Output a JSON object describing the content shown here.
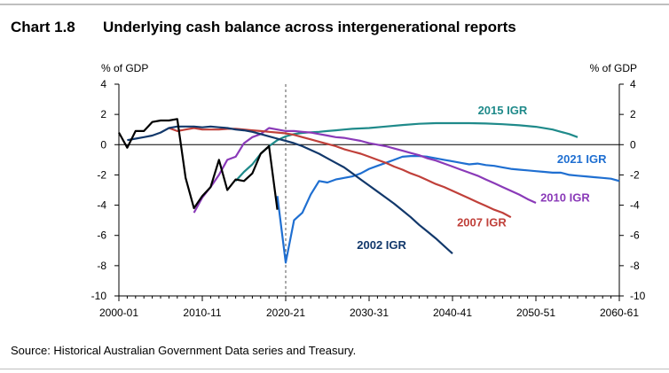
{
  "header": {
    "number": "Chart 1.8",
    "title": "Underlying cash balance across intergenerational reports"
  },
  "source": "Source: Historical Australian Government Data series and Treasury.",
  "chart_data": {
    "type": "line",
    "title": "Underlying cash balance across intergenerational reports",
    "ylabel_left": "% of GDP",
    "ylabel_right": "% of GDP",
    "xlim": [
      2000,
      2060
    ],
    "ylim": [
      -10,
      4
    ],
    "x_ticks": [
      {
        "x": 2000,
        "label": "2000-01"
      },
      {
        "x": 2010,
        "label": "2010-11"
      },
      {
        "x": 2020,
        "label": "2020-21"
      },
      {
        "x": 2030,
        "label": "2030-31"
      },
      {
        "x": 2040,
        "label": "2040-41"
      },
      {
        "x": 2050,
        "label": "2050-51"
      },
      {
        "x": 2060,
        "label": "2060-61"
      }
    ],
    "y_ticks": [
      4,
      2,
      0,
      -2,
      -4,
      -6,
      -8,
      -10
    ],
    "vline_x": 2020,
    "grid": false,
    "series": [
      {
        "name": "2015 IGR",
        "color": "#1f8a8a",
        "points": [
          [
            2014,
            -2.4
          ],
          [
            2015,
            -1.8
          ],
          [
            2016,
            -1.3
          ],
          [
            2017,
            -0.6
          ],
          [
            2018,
            -0.1
          ],
          [
            2019,
            0.3
          ],
          [
            2020,
            0.55
          ],
          [
            2021,
            0.7
          ],
          [
            2022,
            0.78
          ],
          [
            2023,
            0.82
          ],
          [
            2024,
            0.85
          ],
          [
            2025,
            0.9
          ],
          [
            2026,
            0.95
          ],
          [
            2027,
            1.0
          ],
          [
            2028,
            1.05
          ],
          [
            2030,
            1.1
          ],
          [
            2032,
            1.2
          ],
          [
            2034,
            1.3
          ],
          [
            2036,
            1.38
          ],
          [
            2038,
            1.42
          ],
          [
            2040,
            1.42
          ],
          [
            2042,
            1.42
          ],
          [
            2044,
            1.4
          ],
          [
            2046,
            1.35
          ],
          [
            2048,
            1.28
          ],
          [
            2050,
            1.18
          ],
          [
            2052,
            1.0
          ],
          [
            2053,
            0.85
          ],
          [
            2054,
            0.7
          ],
          [
            2055,
            0.5
          ]
        ]
      },
      {
        "name": "2021 IGR",
        "color": "#1f6fd1",
        "points": [
          [
            2019,
            -3.4
          ],
          [
            2020,
            -7.8
          ],
          [
            2021,
            -5.0
          ],
          [
            2022,
            -4.5
          ],
          [
            2023,
            -3.3
          ],
          [
            2024,
            -2.4
          ],
          [
            2025,
            -2.5
          ],
          [
            2026,
            -2.3
          ],
          [
            2027,
            -2.2
          ],
          [
            2028,
            -2.1
          ],
          [
            2029,
            -1.9
          ],
          [
            2030,
            -1.6
          ],
          [
            2031,
            -1.4
          ],
          [
            2032,
            -1.2
          ],
          [
            2033,
            -1.0
          ],
          [
            2034,
            -0.8
          ],
          [
            2035,
            -0.75
          ],
          [
            2036,
            -0.75
          ],
          [
            2037,
            -0.8
          ],
          [
            2038,
            -0.9
          ],
          [
            2039,
            -1.0
          ],
          [
            2040,
            -1.1
          ],
          [
            2041,
            -1.2
          ],
          [
            2042,
            -1.3
          ],
          [
            2043,
            -1.25
          ],
          [
            2044,
            -1.35
          ],
          [
            2045,
            -1.4
          ],
          [
            2046,
            -1.5
          ],
          [
            2047,
            -1.6
          ],
          [
            2048,
            -1.65
          ],
          [
            2049,
            -1.7
          ],
          [
            2050,
            -1.75
          ],
          [
            2051,
            -1.8
          ],
          [
            2052,
            -1.85
          ],
          [
            2053,
            -1.85
          ],
          [
            2054,
            -2.0
          ],
          [
            2055,
            -2.05
          ],
          [
            2056,
            -2.1
          ],
          [
            2057,
            -2.15
          ],
          [
            2058,
            -2.2
          ],
          [
            2059,
            -2.25
          ],
          [
            2060,
            -2.4
          ]
        ]
      },
      {
        "name": "2010 IGR",
        "color": "#8a3ab8",
        "points": [
          [
            2009,
            -4.5
          ],
          [
            2010,
            -3.5
          ],
          [
            2011,
            -2.8
          ],
          [
            2012,
            -2.0
          ],
          [
            2013,
            -1.0
          ],
          [
            2014,
            -0.8
          ],
          [
            2015,
            0.1
          ],
          [
            2016,
            0.5
          ],
          [
            2017,
            0.7
          ],
          [
            2018,
            1.1
          ],
          [
            2019,
            1.0
          ],
          [
            2020,
            0.9
          ],
          [
            2021,
            0.9
          ],
          [
            2022,
            0.85
          ],
          [
            2023,
            0.8
          ],
          [
            2024,
            0.7
          ],
          [
            2025,
            0.6
          ],
          [
            2026,
            0.5
          ],
          [
            2027,
            0.45
          ],
          [
            2028,
            0.35
          ],
          [
            2029,
            0.25
          ],
          [
            2030,
            0.1
          ],
          [
            2031,
            0.0
          ],
          [
            2032,
            -0.1
          ],
          [
            2033,
            -0.25
          ],
          [
            2034,
            -0.4
          ],
          [
            2035,
            -0.55
          ],
          [
            2036,
            -0.7
          ],
          [
            2037,
            -0.9
          ],
          [
            2038,
            -1.05
          ],
          [
            2039,
            -1.25
          ],
          [
            2040,
            -1.45
          ],
          [
            2041,
            -1.65
          ],
          [
            2042,
            -1.85
          ],
          [
            2043,
            -2.05
          ],
          [
            2044,
            -2.3
          ],
          [
            2045,
            -2.55
          ],
          [
            2046,
            -2.8
          ],
          [
            2047,
            -3.05
          ],
          [
            2048,
            -3.3
          ],
          [
            2049,
            -3.6
          ],
          [
            2050,
            -3.85
          ]
        ]
      },
      {
        "name": "2007 IGR",
        "color": "#c0403a",
        "points": [
          [
            2006,
            1.1
          ],
          [
            2007,
            0.9
          ],
          [
            2008,
            1.0
          ],
          [
            2009,
            1.1
          ],
          [
            2010,
            1.0
          ],
          [
            2011,
            1.0
          ],
          [
            2012,
            1.0
          ],
          [
            2013,
            1.05
          ],
          [
            2014,
            1.05
          ],
          [
            2015,
            1.0
          ],
          [
            2016,
            0.95
          ],
          [
            2017,
            0.9
          ],
          [
            2018,
            0.85
          ],
          [
            2019,
            0.8
          ],
          [
            2020,
            0.75
          ],
          [
            2021,
            0.65
          ],
          [
            2022,
            0.5
          ],
          [
            2023,
            0.35
          ],
          [
            2024,
            0.2
          ],
          [
            2025,
            0.05
          ],
          [
            2026,
            -0.1
          ],
          [
            2027,
            -0.3
          ],
          [
            2028,
            -0.45
          ],
          [
            2029,
            -0.6
          ],
          [
            2030,
            -0.8
          ],
          [
            2031,
            -1.0
          ],
          [
            2032,
            -1.2
          ],
          [
            2033,
            -1.45
          ],
          [
            2034,
            -1.65
          ],
          [
            2035,
            -1.9
          ],
          [
            2036,
            -2.1
          ],
          [
            2037,
            -2.35
          ],
          [
            2038,
            -2.6
          ],
          [
            2039,
            -2.8
          ],
          [
            2040,
            -3.05
          ],
          [
            2041,
            -3.3
          ],
          [
            2042,
            -3.55
          ],
          [
            2043,
            -3.8
          ],
          [
            2044,
            -4.05
          ],
          [
            2045,
            -4.3
          ],
          [
            2046,
            -4.5
          ],
          [
            2047,
            -4.8
          ]
        ]
      },
      {
        "name": "2002 IGR",
        "color": "#12386b",
        "points": [
          [
            2001,
            0.3
          ],
          [
            2002,
            0.4
          ],
          [
            2003,
            0.5
          ],
          [
            2004,
            0.6
          ],
          [
            2005,
            0.8
          ],
          [
            2006,
            1.1
          ],
          [
            2007,
            1.2
          ],
          [
            2008,
            1.2
          ],
          [
            2009,
            1.2
          ],
          [
            2010,
            1.15
          ],
          [
            2011,
            1.2
          ],
          [
            2012,
            1.15
          ],
          [
            2013,
            1.1
          ],
          [
            2014,
            1.0
          ],
          [
            2015,
            0.95
          ],
          [
            2016,
            0.85
          ],
          [
            2017,
            0.7
          ],
          [
            2018,
            0.55
          ],
          [
            2019,
            0.4
          ],
          [
            2020,
            0.25
          ],
          [
            2021,
            0.1
          ],
          [
            2022,
            -0.1
          ],
          [
            2023,
            -0.35
          ],
          [
            2024,
            -0.6
          ],
          [
            2025,
            -0.9
          ],
          [
            2026,
            -1.2
          ],
          [
            2027,
            -1.5
          ],
          [
            2028,
            -1.9
          ],
          [
            2029,
            -2.3
          ],
          [
            2030,
            -2.7
          ],
          [
            2031,
            -3.1
          ],
          [
            2032,
            -3.5
          ],
          [
            2033,
            -3.9
          ],
          [
            2034,
            -4.35
          ],
          [
            2035,
            -4.8
          ],
          [
            2036,
            -5.3
          ],
          [
            2037,
            -5.75
          ],
          [
            2038,
            -6.2
          ],
          [
            2039,
            -6.7
          ],
          [
            2040,
            -7.2
          ]
        ]
      },
      {
        "name": "",
        "color": "#000000",
        "points": [
          [
            2000,
            0.8
          ],
          [
            2001,
            -0.2
          ],
          [
            2002,
            0.9
          ],
          [
            2003,
            0.9
          ],
          [
            2004,
            1.5
          ],
          [
            2005,
            1.6
          ],
          [
            2006,
            1.6
          ],
          [
            2007,
            1.7
          ],
          [
            2008,
            -2.2
          ],
          [
            2009,
            -4.2
          ],
          [
            2010,
            -3.4
          ],
          [
            2011,
            -2.8
          ],
          [
            2012,
            -1.0
          ],
          [
            2013,
            -3.0
          ],
          [
            2014,
            -2.3
          ],
          [
            2015,
            -2.4
          ],
          [
            2016,
            -1.9
          ],
          [
            2017,
            -0.6
          ],
          [
            2018,
            -0.1
          ],
          [
            2019,
            -4.3
          ]
        ]
      }
    ],
    "labels": [
      {
        "series": "2015 IGR",
        "x": 2046,
        "y": 2.0,
        "anchor": "middle"
      },
      {
        "series": "2021 IGR",
        "x": 2055.5,
        "y": -1.2,
        "anchor": "middle"
      },
      {
        "series": "2010 IGR",
        "x": 2053.5,
        "y": -3.75,
        "anchor": "middle"
      },
      {
        "series": "2007 IGR",
        "x": 2043.5,
        "y": -5.4,
        "anchor": "middle"
      },
      {
        "series": "2002 IGR",
        "x": 2031.5,
        "y": -6.9,
        "anchor": "middle"
      }
    ]
  }
}
